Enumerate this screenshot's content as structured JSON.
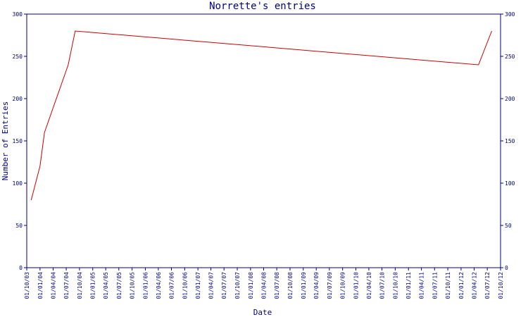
{
  "chart_data": {
    "type": "line",
    "title": "Norrette's entries",
    "xlabel": "Date",
    "ylabel": "Number of Entries",
    "ylim": [
      0,
      300
    ],
    "yticks": [
      0,
      50,
      100,
      150,
      200,
      250,
      300
    ],
    "xticks": [
      "01/10/03",
      "01/01/04",
      "01/04/04",
      "01/07/04",
      "01/10/04",
      "01/01/05",
      "01/04/05",
      "01/07/05",
      "01/10/05",
      "01/01/06",
      "01/04/06",
      "01/07/06",
      "01/10/06",
      "01/01/07",
      "01/04/07",
      "01/07/07",
      "01/10/07",
      "01/01/08",
      "01/04/08",
      "01/07/08",
      "01/10/08",
      "01/01/09",
      "01/04/09",
      "01/07/09",
      "01/10/09",
      "01/01/10",
      "01/04/10",
      "01/07/10",
      "01/10/10",
      "01/01/11",
      "01/04/11",
      "01/07/11",
      "01/10/11",
      "01/01/12",
      "01/04/12",
      "01/07/12",
      "01/10/12"
    ],
    "grid": false,
    "colors": {
      "axis": "#000080",
      "series": "#cc0000"
    },
    "series": [
      {
        "x": [
          "2003-11-01",
          "2004-01-01",
          "2004-02-01",
          "2004-07-15",
          "2004-09-01",
          "2012-05-01",
          "2012-08-01"
        ],
        "values": [
          80,
          120,
          160,
          240,
          280,
          240,
          280
        ]
      }
    ]
  }
}
